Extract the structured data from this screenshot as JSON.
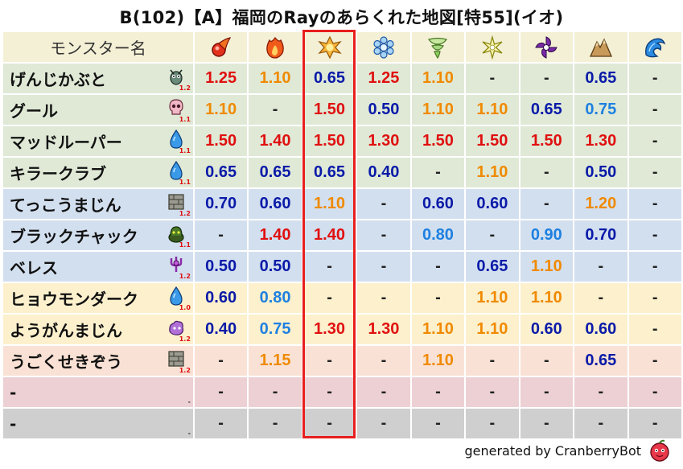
{
  "title": "B(102)【A】福岡のRayのあらくれた地図[特55](イオ)",
  "header": {
    "name_label": "モンスター名",
    "elements": [
      {
        "icon": "mera-fire-orb-icon"
      },
      {
        "icon": "gira-flame-icon"
      },
      {
        "icon": "io-explosion-icon"
      },
      {
        "icon": "hyado-ice-icon"
      },
      {
        "icon": "bagi-wind-icon"
      },
      {
        "icon": "dein-light-icon"
      },
      {
        "icon": "doruma-dark-icon"
      },
      {
        "icon": "jibaria-earth-icon"
      },
      {
        "icon": "water-wave-icon"
      }
    ]
  },
  "rows": [
    {
      "name": "げんじかぶと",
      "level": "1.2",
      "icon": "beetle-icon",
      "band": "green",
      "values": [
        "1.25",
        "1.10",
        "0.65",
        "1.25",
        "1.10",
        "-",
        "-",
        "0.65",
        "-"
      ],
      "colors": [
        "red",
        "orange",
        "navy",
        "red",
        "orange",
        "dash",
        "dash",
        "navy",
        "dash"
      ]
    },
    {
      "name": "グール",
      "level": "1.1",
      "icon": "skull-icon",
      "band": "green",
      "values": [
        "1.10",
        "-",
        "1.50",
        "0.50",
        "1.10",
        "1.10",
        "0.65",
        "0.75",
        "-"
      ],
      "colors": [
        "orange",
        "dash",
        "red",
        "navy",
        "orange",
        "orange",
        "navy",
        "blue",
        "dash"
      ]
    },
    {
      "name": "マッドルーパー",
      "level": "1.1",
      "icon": "water-drop-icon",
      "band": "green",
      "values": [
        "1.50",
        "1.40",
        "1.50",
        "1.30",
        "1.50",
        "1.50",
        "1.50",
        "1.30",
        "-"
      ],
      "colors": [
        "red",
        "red",
        "red",
        "red",
        "red",
        "red",
        "red",
        "red",
        "dash"
      ]
    },
    {
      "name": "キラークラブ",
      "level": "1.1",
      "icon": "water-drop-icon",
      "band": "green",
      "values": [
        "0.65",
        "0.65",
        "0.65",
        "0.40",
        "-",
        "1.10",
        "-",
        "0.50",
        "-"
      ],
      "colors": [
        "navy",
        "navy",
        "navy",
        "navy",
        "dash",
        "orange",
        "dash",
        "navy",
        "dash"
      ]
    },
    {
      "name": "てっこうまじん",
      "level": "1.2",
      "icon": "brick-icon",
      "band": "blue",
      "values": [
        "0.70",
        "0.60",
        "1.10",
        "-",
        "0.60",
        "0.60",
        "-",
        "1.20",
        "-"
      ],
      "colors": [
        "navy",
        "navy",
        "orange",
        "dash",
        "navy",
        "navy",
        "dash",
        "orange",
        "dash"
      ]
    },
    {
      "name": "ブラックチャック",
      "level": "1.1",
      "icon": "slime-pot-icon",
      "band": "blue",
      "values": [
        "-",
        "1.40",
        "1.40",
        "-",
        "0.80",
        "-",
        "0.90",
        "0.70",
        "-"
      ],
      "colors": [
        "dash",
        "red",
        "red",
        "dash",
        "blue",
        "dash",
        "blue",
        "navy",
        "dash"
      ]
    },
    {
      "name": "ベレス",
      "level": "1.2",
      "icon": "demon-trident-icon",
      "band": "blue",
      "values": [
        "0.50",
        "0.50",
        "-",
        "-",
        "-",
        "0.65",
        "1.10",
        "-",
        "-"
      ],
      "colors": [
        "navy",
        "navy",
        "dash",
        "dash",
        "dash",
        "navy",
        "orange",
        "dash",
        "dash"
      ]
    },
    {
      "name": "ヒョウモンダーク",
      "level": "1.0",
      "icon": "water-drop-icon",
      "band": "yellow",
      "values": [
        "0.60",
        "0.80",
        "-",
        "-",
        "-",
        "1.10",
        "1.10",
        "-",
        "-"
      ],
      "colors": [
        "navy",
        "blue",
        "dash",
        "dash",
        "dash",
        "orange",
        "orange",
        "dash",
        "dash"
      ]
    },
    {
      "name": "ようがんまじん",
      "level": "1.2",
      "icon": "purple-blob-icon",
      "band": "yellow",
      "values": [
        "0.40",
        "0.75",
        "1.30",
        "1.30",
        "1.10",
        "1.10",
        "0.60",
        "0.60",
        "-"
      ],
      "colors": [
        "navy",
        "blue",
        "red",
        "red",
        "orange",
        "orange",
        "navy",
        "navy",
        "dash"
      ]
    },
    {
      "name": "うごくせきぞう",
      "level": "1.2",
      "icon": "brick-icon",
      "band": "peach",
      "values": [
        "-",
        "1.15",
        "-",
        "-",
        "1.10",
        "-",
        "-",
        "0.65",
        "-"
      ],
      "colors": [
        "dash",
        "orange",
        "dash",
        "dash",
        "orange",
        "dash",
        "dash",
        "navy",
        "dash"
      ]
    },
    {
      "name": "-",
      "level": "-",
      "icon": "",
      "band": "pink",
      "values": [
        "-",
        "-",
        "-",
        "-",
        "-",
        "-",
        "-",
        "-",
        "-"
      ],
      "colors": [
        "dash",
        "dash",
        "dash",
        "dash",
        "dash",
        "dash",
        "dash",
        "dash",
        "dash"
      ]
    },
    {
      "name": "-",
      "level": "-",
      "icon": "",
      "band": "gray",
      "values": [
        "-",
        "-",
        "-",
        "-",
        "-",
        "-",
        "-",
        "-",
        "-"
      ],
      "colors": [
        "dash",
        "dash",
        "dash",
        "dash",
        "dash",
        "dash",
        "dash",
        "dash",
        "dash"
      ]
    }
  ],
  "band_colors": {
    "green": "#dfe9d6",
    "blue": "#d2dfef",
    "yellow": "#fcf0cd",
    "peach": "#f9e2d5",
    "pink": "#edd0d3",
    "gray": "#cfcfcf"
  },
  "value_colors": {
    "red": "#e01010",
    "orange": "#f08a00",
    "navy": "#0a1aa8",
    "blue": "#1e80e0",
    "dash": "#222222"
  },
  "highlight_color": "#e81e1e",
  "footer": {
    "text": "generated by CranberryBot",
    "icon": "cranberry-bot-icon"
  }
}
